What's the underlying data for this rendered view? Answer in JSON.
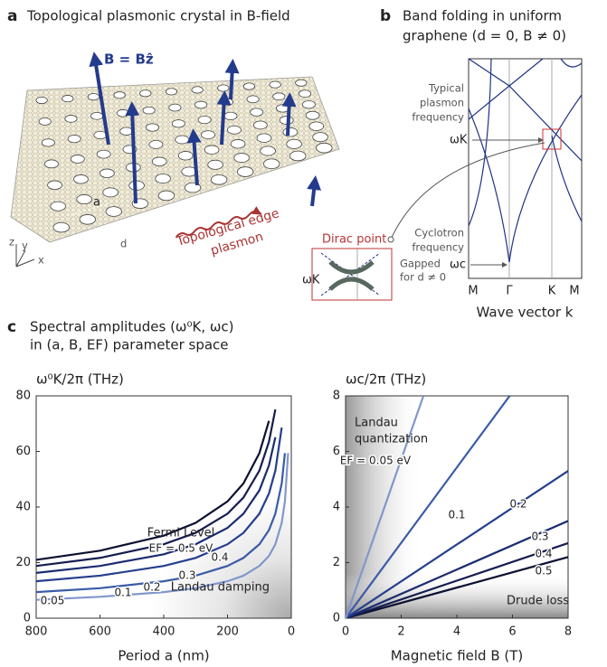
{
  "panel_a": {
    "label": "a",
    "title": "Topological plasmonic crystal in B-field",
    "field_label": "B = Bẑ",
    "lattice_label": "a",
    "hole_label": "d",
    "edge_label": [
      "Topological edge",
      "plasmon"
    ],
    "axes": [
      "z",
      "y",
      "x"
    ]
  },
  "panel_b": {
    "label": "b",
    "title": [
      "Band folding in uniform",
      "graphene (d = 0, B ≠ 0)"
    ],
    "plasmon_label": [
      "Typical",
      "plasmon",
      "frequency"
    ],
    "omega_k": "ωK",
    "cyclotron_label": [
      "Cyclotron",
      "frequency"
    ],
    "omega_c": "ωc",
    "x_labels": [
      "M",
      "Γ",
      "K",
      "M"
    ],
    "x_axis": "Wave vector k",
    "inset": {
      "title": "Dirac point",
      "omega_k": "ωK",
      "note": [
        "Gapped",
        "for d ≠ 0"
      ]
    }
  },
  "panel_c": {
    "label": "c",
    "title": [
      "Spectral amplitudes (ω⁰K, ωc)",
      "in (a, B, EF) parameter space"
    ]
  },
  "chart_data": [
    {
      "type": "line",
      "ylabel": "ω⁰K/2π (THz)",
      "xlabel": "Period a (nm)",
      "xlim": [
        800,
        0
      ],
      "xticks": [
        800,
        600,
        400,
        200,
        0
      ],
      "ylim": [
        0,
        80
      ],
      "yticks": [
        0,
        20,
        40,
        60,
        80
      ],
      "annotations": [
        "Fermi Level",
        "Landau damping"
      ],
      "x": [
        800,
        600,
        400,
        300,
        200,
        150,
        100,
        70,
        50,
        30,
        20,
        10
      ],
      "series": [
        {
          "name": "EF = 0.5 eV",
          "color": "#0b1030",
          "values": [
            21,
            24.3,
            29.7,
            34.3,
            42,
            48.5,
            59.4,
            71,
            null,
            null,
            null,
            null
          ]
        },
        {
          "name": "0.4",
          "color": "#151d50",
          "values": [
            18.8,
            21.7,
            26.6,
            30.7,
            37.6,
            43.4,
            53.1,
            63.5,
            75.1,
            null,
            null,
            null
          ]
        },
        {
          "name": "0.3",
          "color": "#1c2c70",
          "values": [
            16.3,
            18.8,
            23,
            26.6,
            32.5,
            37.6,
            46,
            55,
            65.1,
            null,
            null,
            null
          ]
        },
        {
          "name": "0.2",
          "color": "#253f8e",
          "values": [
            13.3,
            15.3,
            18.8,
            21.7,
            26.6,
            30.7,
            37.6,
            44.9,
            53.1,
            68.6,
            null,
            null
          ]
        },
        {
          "name": "0.1",
          "color": "#3b5ba8",
          "values": [
            9.4,
            10.8,
            13.3,
            15.3,
            18.8,
            21.7,
            26.6,
            31.7,
            37.6,
            48.5,
            59.4,
            null
          ]
        },
        {
          "name": "0.05",
          "color": "#8197cc",
          "values": [
            6.6,
            7.7,
            9.4,
            10.8,
            13.3,
            15.3,
            18.8,
            22.4,
            26.6,
            34.3,
            42,
            59.4
          ]
        }
      ]
    },
    {
      "type": "line",
      "ylabel": "ωc/2π (THz)",
      "xlabel": "Magnetic field B (T)",
      "xlim": [
        0,
        8
      ],
      "xticks": [
        0,
        2,
        4,
        6,
        8
      ],
      "ylim": [
        0,
        8
      ],
      "yticks": [
        0,
        2,
        4,
        6,
        8
      ],
      "annotations": [
        "Landau",
        "quantization",
        "Drude loss"
      ],
      "series": [
        {
          "name": "0.5",
          "color": "#0b1030",
          "x": [
            0,
            8
          ],
          "values": [
            0,
            2.2
          ]
        },
        {
          "name": "0.4",
          "color": "#151d50",
          "x": [
            0,
            8
          ],
          "values": [
            0,
            2.7
          ]
        },
        {
          "name": "0.3",
          "color": "#1c2c70",
          "x": [
            0,
            8
          ],
          "values": [
            0,
            3.5
          ]
        },
        {
          "name": "0.2",
          "color": "#253f8e",
          "x": [
            0,
            8
          ],
          "values": [
            0,
            5.3
          ]
        },
        {
          "name": "0.1",
          "color": "#3b5ba8",
          "x": [
            0,
            5.9
          ],
          "values": [
            0,
            8
          ]
        },
        {
          "name": "EF = 0.05 eV",
          "color": "#8197cc",
          "x": [
            0,
            2.8
          ],
          "values": [
            0,
            8
          ]
        }
      ]
    }
  ]
}
